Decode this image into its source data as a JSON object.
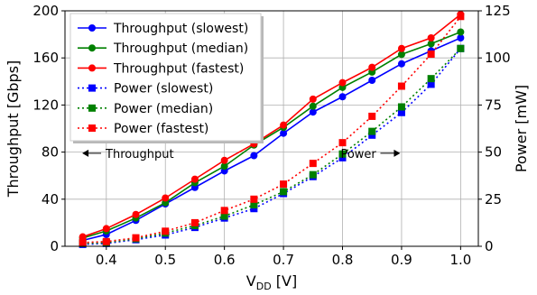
{
  "chart_data": {
    "type": "line",
    "xlabel": "V",
    "xlabel_sub": "DD",
    "xlabel_unit": " [V]",
    "ylabel": "Throughput [Gbps]",
    "y2label": "Power [mW]",
    "xlim": [
      0.33,
      1.03
    ],
    "ylim": [
      0,
      200
    ],
    "y2lim": [
      0,
      125
    ],
    "xticks": [
      0.4,
      0.5,
      0.6,
      0.7,
      0.8,
      0.9,
      1.0
    ],
    "xtick_labels": [
      "0.4",
      "0.5",
      "0.6",
      "0.7",
      "0.8",
      "0.9",
      "1.0"
    ],
    "yticks": [
      0,
      40,
      80,
      120,
      160,
      200
    ],
    "ytick_labels": [
      "0",
      "40",
      "80",
      "120",
      "160",
      "200"
    ],
    "y2ticks": [
      0,
      25,
      50,
      75,
      100,
      125
    ],
    "y2tick_labels": [
      "0",
      "25",
      "50",
      "75",
      "100",
      "125"
    ],
    "grid": true,
    "legend_position": "upper-left",
    "x": [
      0.36,
      0.4,
      0.45,
      0.5,
      0.55,
      0.6,
      0.65,
      0.7,
      0.75,
      0.8,
      0.85,
      0.9,
      0.95,
      1.0
    ],
    "series": [
      {
        "name": "Throughput (slowest)",
        "axis": "left",
        "style": "solid",
        "marker": "circle",
        "color": "#0000ff",
        "values": [
          5,
          10,
          22,
          36,
          50,
          64,
          77,
          96,
          114,
          127,
          141,
          155,
          166,
          177
        ]
      },
      {
        "name": "Throughput (median)",
        "axis": "left",
        "style": "solid",
        "marker": "circle",
        "color": "#008000",
        "values": [
          7,
          13,
          24,
          37,
          54,
          68,
          86,
          101,
          119,
          135,
          148,
          163,
          172,
          182
        ]
      },
      {
        "name": "Throughput (fastest)",
        "axis": "left",
        "style": "solid",
        "marker": "circle",
        "color": "#ff0000",
        "values": [
          8,
          15,
          27,
          41,
          57,
          73,
          87,
          103,
          125,
          139,
          152,
          168,
          177,
          197
        ]
      },
      {
        "name": "Power (slowest)",
        "axis": "right",
        "style": "dotted",
        "marker": "square",
        "color": "#0000ff",
        "values": [
          1,
          1.5,
          3.5,
          6,
          10,
          15,
          20,
          28,
          37,
          47,
          59,
          71,
          86,
          105
        ]
      },
      {
        "name": "Power (median)",
        "axis": "right",
        "style": "dotted",
        "marker": "square",
        "color": "#008000",
        "values": [
          1.5,
          2,
          4,
          7,
          11,
          16,
          22,
          29,
          38,
          49,
          61,
          74,
          89,
          105
        ]
      },
      {
        "name": "Power (fastest)",
        "axis": "right",
        "style": "dotted",
        "marker": "square",
        "color": "#ff0000",
        "values": [
          2,
          2.5,
          4.5,
          8,
          12.5,
          19,
          25,
          33,
          44,
          55,
          69,
          85,
          102,
          122
        ]
      }
    ],
    "annotations": [
      {
        "text": "Throughput",
        "arrow": "left",
        "x": 0.46,
        "y": 79
      },
      {
        "text": "Power",
        "arrow": "right",
        "x": 0.858,
        "y": 79
      }
    ]
  }
}
